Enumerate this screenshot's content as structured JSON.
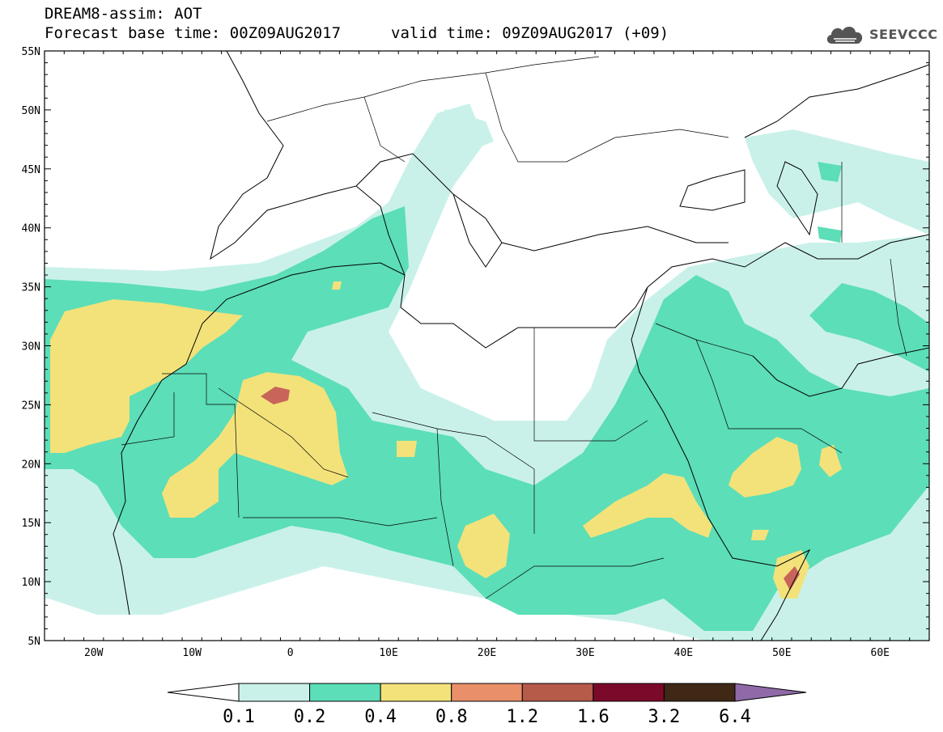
{
  "header": {
    "title": "DREAM8-assim: AOT",
    "base_time": "Forecast base time: 00Z09AUG2017",
    "valid_time": "valid time: 09Z09AUG2017 (+09)"
  },
  "logo": {
    "text": "SEEVCCC",
    "icon": "cloud-icon"
  },
  "axes": {
    "lon_labels": [
      "20W",
      "10W",
      "0",
      "10E",
      "20E",
      "30E",
      "40E",
      "50E",
      "60E"
    ],
    "lat_labels": [
      "55N",
      "50N",
      "45N",
      "40N",
      "35N",
      "30N",
      "25N",
      "20N",
      "15N",
      "10N",
      "5N"
    ],
    "lon_range": [
      -25,
      65
    ],
    "lat_range": [
      5,
      55
    ]
  },
  "colorbar": {
    "labels": [
      "0.1",
      "0.2",
      "0.4",
      "0.8",
      "1.2",
      "1.6",
      "3.2",
      "6.4"
    ],
    "colors": [
      "#ffffff",
      "#c9f1ea",
      "#5cdeb8",
      "#f3e27a",
      "#e9906a",
      "#b65a4a",
      "#7b0a2a",
      "#3f2816",
      "#8e6aa8"
    ]
  },
  "map_colors": {
    "aot_01_02": "#c9f1ea",
    "aot_02_04": "#5cdeb8",
    "aot_04_08": "#f3e27a",
    "aot_08_12": "#e9906a",
    "aot_12_16": "#c8655a"
  }
}
